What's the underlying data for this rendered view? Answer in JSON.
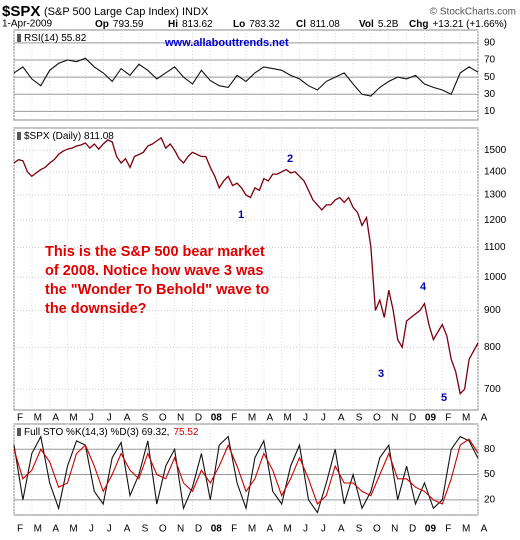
{
  "header": {
    "symbol": "$SPX",
    "name": "(S&P 500 Large Cap Index) INDX",
    "source": "© StockCharts.com",
    "date": "1-Apr-2009",
    "quote": [
      {
        "label": "Op",
        "value": 793.59
      },
      {
        "label": "Hi",
        "value": 813.62
      },
      {
        "label": "Lo",
        "value": 783.32
      },
      {
        "label": "Cl",
        "value": 811.08
      },
      {
        "label": "Vol",
        "value": "5.2B"
      },
      {
        "label": "Chg",
        "value": "+13.21 (+1.66%)"
      }
    ]
  },
  "time_axis": {
    "labels": [
      "F",
      "M",
      "A",
      "M",
      "J",
      "J",
      "A",
      "S",
      "O",
      "N",
      "D",
      "08",
      "F",
      "M",
      "A",
      "M",
      "J",
      "J",
      "A",
      "S",
      "O",
      "N",
      "D",
      "09",
      "F",
      "M",
      "A"
    ]
  },
  "chart_data": [
    {
      "type": "line",
      "label": "RSI(14) 55.82",
      "url": "www.allabouttrends.net",
      "ylim": [
        0,
        105
      ],
      "yticks": [
        10,
        30,
        50,
        70,
        90
      ],
      "grid": true,
      "series": [
        {
          "color": "#111111",
          "values": [
            55,
            62,
            48,
            40,
            58,
            66,
            70,
            68,
            72,
            62,
            55,
            45,
            60,
            52,
            65,
            58,
            48,
            55,
            62,
            50,
            42,
            58,
            46,
            40,
            38,
            52,
            45,
            55,
            62,
            60,
            58,
            52,
            48,
            40,
            35,
            45,
            50,
            55,
            42,
            30,
            28,
            38,
            45,
            50,
            48,
            52,
            42,
            38,
            35,
            30,
            55,
            62,
            55.82
          ]
        }
      ]
    },
    {
      "type": "line",
      "label": "$SPX (Daily) 811.08",
      "log": true,
      "ylim": [
        655,
        1610
      ],
      "yticks": [
        700,
        800,
        900,
        1000,
        1100,
        1200,
        1300,
        1400,
        1500
      ],
      "grid": true,
      "series": [
        {
          "color": "#7a0010",
          "values": [
            1440,
            1455,
            1450,
            1400,
            1380,
            1395,
            1410,
            1420,
            1440,
            1455,
            1480,
            1495,
            1505,
            1510,
            1520,
            1525,
            1535,
            1510,
            1530,
            1505,
            1530,
            1550,
            1540,
            1470,
            1440,
            1460,
            1420,
            1470,
            1480,
            1490,
            1520,
            1530,
            1545,
            1560,
            1510,
            1530,
            1500,
            1460,
            1440,
            1470,
            1490,
            1480,
            1470,
            1470,
            1420,
            1380,
            1330,
            1360,
            1380,
            1340,
            1350,
            1330,
            1300,
            1290,
            1330,
            1320,
            1370,
            1360,
            1390,
            1390,
            1400,
            1410,
            1395,
            1400,
            1380,
            1360,
            1320,
            1280,
            1260,
            1240,
            1260,
            1260,
            1280,
            1290,
            1270,
            1290,
            1250,
            1230,
            1180,
            1210,
            1100,
            900,
            930,
            880,
            960,
            900,
            820,
            800,
            870,
            880,
            890,
            900,
            920,
            860,
            820,
            840,
            860,
            830,
            770,
            740,
            690,
            700,
            770,
            790,
            811.08
          ]
        }
      ],
      "annotations": [
        "1",
        "2",
        "3",
        "4",
        "5"
      ],
      "note": "This is the S&P 500 bear market of 2008. Notice how wave 3 was the \"Wonder To Behold\" wave to the downside?"
    },
    {
      "type": "line",
      "label": "Full STO %K(14,3) %D(3) 69.32,",
      "label_value": "75.52",
      "ylim": [
        2,
        110
      ],
      "yticks": [
        20,
        50,
        80
      ],
      "grid": true,
      "series": [
        {
          "color": "#111111",
          "values": [
            85,
            20,
            75,
            95,
            40,
            10,
            60,
            90,
            85,
            30,
            15,
            70,
            88,
            25,
            50,
            90,
            15,
            60,
            80,
            10,
            35,
            75,
            20,
            85,
            95,
            40,
            10,
            70,
            90,
            30,
            15,
            60,
            85,
            20,
            5,
            40,
            80,
            15,
            50,
            10,
            30,
            70,
            85,
            20,
            60,
            15,
            40,
            10,
            20,
            80,
            95,
            90,
            69.32
          ]
        },
        {
          "color": "#cc0000",
          "values": [
            80,
            45,
            55,
            80,
            65,
            35,
            40,
            75,
            85,
            60,
            30,
            50,
            75,
            55,
            45,
            75,
            50,
            45,
            70,
            40,
            30,
            55,
            40,
            60,
            85,
            60,
            30,
            45,
            75,
            55,
            25,
            45,
            70,
            45,
            15,
            25,
            60,
            40,
            40,
            30,
            25,
            50,
            75,
            45,
            45,
            35,
            30,
            20,
            15,
            45,
            85,
            92,
            75.52
          ]
        }
      ]
    }
  ]
}
